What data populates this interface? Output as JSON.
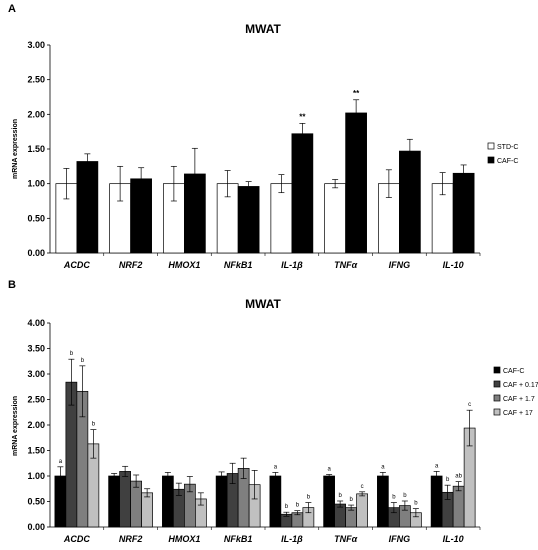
{
  "chart_data": [
    {
      "type": "bar",
      "panel_label": "A",
      "title": "MWAT",
      "ylabel": "mRNA expression",
      "ylim": [
        0,
        3
      ],
      "yticks": [
        "0.00",
        "0.50",
        "1.00",
        "1.50",
        "2.00",
        "2.50",
        "3.00"
      ],
      "categories": [
        "ACDC",
        "NRF2",
        "HMOX1",
        "NFkB1",
        "IL-1β",
        "TNFα",
        "IFNG",
        "IL-10"
      ],
      "grid": false,
      "legend_position": "right",
      "series": [
        {
          "name": "STD-C",
          "color": "#ffffff",
          "values": [
            1.0,
            1.0,
            1.0,
            1.0,
            1.0,
            1.0,
            1.0,
            1.0
          ],
          "errors": [
            0.22,
            0.25,
            0.25,
            0.19,
            0.13,
            0.06,
            0.2,
            0.16
          ]
        },
        {
          "name": "CAF-C",
          "color": "#000000",
          "values": [
            1.32,
            1.07,
            1.14,
            0.96,
            1.72,
            2.02,
            1.47,
            1.15
          ],
          "errors": [
            0.11,
            0.16,
            0.37,
            0.07,
            0.15,
            0.19,
            0.17,
            0.12
          ]
        }
      ],
      "annotations": [
        {
          "category": "IL-1β",
          "series": "CAF-C",
          "text": "**"
        },
        {
          "category": "TNFα",
          "series": "CAF-C",
          "text": "**"
        }
      ]
    },
    {
      "type": "bar",
      "panel_label": "B",
      "title": "MWAT",
      "ylabel": "mRNA expression",
      "ylim": [
        0,
        4
      ],
      "yticks": [
        "0.00",
        "0.50",
        "1.00",
        "1.50",
        "2.00",
        "2.50",
        "3.00",
        "3.50",
        "4.00"
      ],
      "categories": [
        "ACDC",
        "NRF2",
        "HMOX1",
        "NFkB1",
        "IL-1β",
        "TNFα",
        "IFNG",
        "IL-10"
      ],
      "grid": false,
      "legend_position": "right",
      "series": [
        {
          "name": "CAF-C",
          "color": "#000000",
          "values": [
            1.0,
            1.0,
            1.0,
            1.0,
            1.0,
            1.0,
            1.0,
            1.0
          ],
          "errors": [
            0.18,
            0.05,
            0.07,
            0.08,
            0.07,
            0.03,
            0.07,
            0.09
          ],
          "letters": [
            "a",
            "",
            "",
            "",
            "a",
            "a",
            "a",
            "a"
          ]
        },
        {
          "name": "CAF + 0.17",
          "color": "#404040",
          "values": [
            2.84,
            1.09,
            0.74,
            1.05,
            0.25,
            0.45,
            0.38,
            0.68
          ],
          "errors": [
            0.45,
            0.1,
            0.12,
            0.2,
            0.04,
            0.06,
            0.1,
            0.14
          ],
          "letters": [
            "b",
            "",
            "",
            "",
            "b",
            "b",
            "b",
            "b"
          ]
        },
        {
          "name": "CAF + 1.7",
          "color": "#7f7f7f",
          "values": [
            2.66,
            0.9,
            0.84,
            1.15,
            0.28,
            0.38,
            0.42,
            0.8
          ],
          "errors": [
            0.5,
            0.12,
            0.15,
            0.2,
            0.04,
            0.05,
            0.09,
            0.09
          ],
          "letters": [
            "b",
            "",
            "",
            "",
            "b",
            "b",
            "b",
            "ab"
          ]
        },
        {
          "name": "CAF + 17",
          "color": "#c0c0c0",
          "values": [
            1.63,
            0.67,
            0.55,
            0.83,
            0.38,
            0.65,
            0.28,
            1.94
          ],
          "errors": [
            0.28,
            0.08,
            0.12,
            0.28,
            0.1,
            0.04,
            0.08,
            0.35
          ],
          "letters": [
            "b",
            "",
            "",
            "",
            "b",
            "c",
            "b",
            "c"
          ]
        }
      ]
    }
  ]
}
